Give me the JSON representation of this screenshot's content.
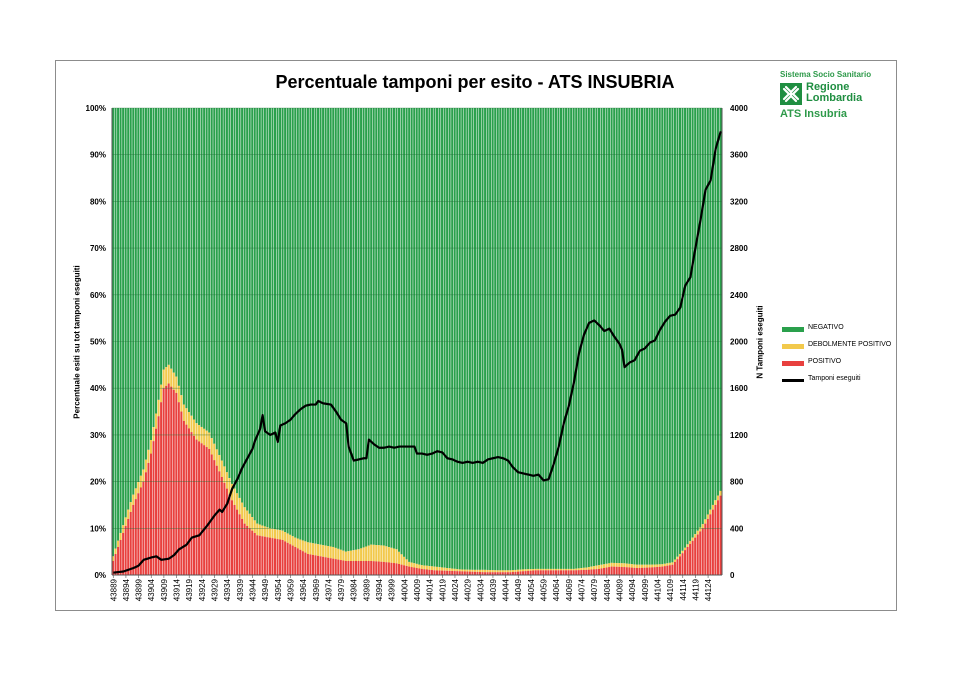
{
  "colors": {
    "negativo": "#2aa04c",
    "debolmente_positivo": "#f2c94c",
    "positivo": "#e8403e",
    "tamponi": "#000000",
    "grid": "#1f6e35"
  },
  "logo": {
    "top_text": "Sistema Socio Sanitario",
    "name": "Regione Lombardia",
    "bottom_text": "ATS Insubria",
    "icon": "regione-lombardia-logo-icon"
  },
  "chart_data": {
    "type": "bar",
    "title": "Percentuale tamponi per esito - ATS INSUBRIA",
    "ylabel": "Percentuale esiti su tot tamponi eseguiti",
    "y2label": "N Tamponi eseguiti",
    "ylim": [
      0,
      100
    ],
    "y2lim": [
      0,
      4000
    ],
    "yticks": [
      "0%",
      "10%",
      "20%",
      "30%",
      "40%",
      "50%",
      "60%",
      "70%",
      "80%",
      "90%",
      "100%"
    ],
    "y2ticks": [
      "0",
      "400",
      "800",
      "1200",
      "1600",
      "2000",
      "2400",
      "2800",
      "3200",
      "3600",
      "4000"
    ],
    "x_start": 43889,
    "x_end": 44129,
    "xticks": [
      "43889",
      "43894",
      "43899",
      "43904",
      "43909",
      "43914",
      "43919",
      "43924",
      "43929",
      "43934",
      "43939",
      "43944",
      "43949",
      "43954",
      "43959",
      "43964",
      "43969",
      "43974",
      "43979",
      "43984",
      "43989",
      "43994",
      "43999",
      "44004",
      "44009",
      "44014",
      "44019",
      "44024",
      "44029",
      "44034",
      "44039",
      "44044",
      "44049",
      "44054",
      "44059",
      "44064",
      "44069",
      "44074",
      "44079",
      "44084",
      "44089",
      "44094",
      "44099",
      "44104",
      "44109",
      "44114",
      "44119",
      "44124"
    ],
    "grid": true,
    "legend_position": "right",
    "legend": [
      "NEGATIVO",
      "DEBOLMENTE POSITIVO",
      "POSITIVO",
      "Tamponi eseguiti"
    ],
    "stacking": "percent",
    "positivo_pct_keypoints": [
      [
        43889,
        3
      ],
      [
        43893,
        9
      ],
      [
        43897,
        15
      ],
      [
        43901,
        20
      ],
      [
        43904,
        26
      ],
      [
        43907,
        34
      ],
      [
        43909,
        40
      ],
      [
        43911,
        41
      ],
      [
        43914,
        39
      ],
      [
        43917,
        33
      ],
      [
        43922,
        29
      ],
      [
        43927,
        27
      ],
      [
        43932,
        21
      ],
      [
        43936,
        16
      ],
      [
        43941,
        11
      ],
      [
        43946,
        8.5
      ],
      [
        43951,
        8
      ],
      [
        43956,
        7.5
      ],
      [
        43961,
        6
      ],
      [
        43966,
        4.5
      ],
      [
        43971,
        4
      ],
      [
        43976,
        3.5
      ],
      [
        43981,
        3
      ],
      [
        43986,
        3
      ],
      [
        43991,
        3
      ],
      [
        43996,
        2.8
      ],
      [
        44001,
        2.5
      ],
      [
        44006,
        1.8
      ],
      [
        44011,
        1.3
      ],
      [
        44016,
        1
      ],
      [
        44021,
        0.9
      ],
      [
        44026,
        0.8
      ],
      [
        44031,
        0.7
      ],
      [
        44036,
        0.6
      ],
      [
        44041,
        0.6
      ],
      [
        44046,
        0.6
      ],
      [
        44051,
        0.8
      ],
      [
        44056,
        1
      ],
      [
        44061,
        1
      ],
      [
        44066,
        1
      ],
      [
        44071,
        1
      ],
      [
        44076,
        1.1
      ],
      [
        44081,
        1.3
      ],
      [
        44086,
        1.8
      ],
      [
        44091,
        1.7
      ],
      [
        44096,
        1.5
      ],
      [
        44101,
        1.6
      ],
      [
        44106,
        1.8
      ],
      [
        44110,
        2.2
      ],
      [
        44113,
        4
      ],
      [
        44116,
        6
      ],
      [
        44119,
        8
      ],
      [
        44122,
        10
      ],
      [
        44125,
        13
      ],
      [
        44127,
        15
      ],
      [
        44129,
        17
      ]
    ],
    "debolmente_positivo_pct_keypoints": [
      [
        43889,
        1
      ],
      [
        43895,
        2
      ],
      [
        43900,
        2.5
      ],
      [
        43905,
        3
      ],
      [
        43909,
        4
      ],
      [
        43911,
        4
      ],
      [
        43914,
        3.5
      ],
      [
        43920,
        3.5
      ],
      [
        43925,
        3.5
      ],
      [
        43930,
        3.5
      ],
      [
        43935,
        3.5
      ],
      [
        43941,
        3.5
      ],
      [
        43946,
        2.5
      ],
      [
        43951,
        2
      ],
      [
        43956,
        2
      ],
      [
        43961,
        2
      ],
      [
        43966,
        2.5
      ],
      [
        43971,
        2.5
      ],
      [
        43976,
        2.5
      ],
      [
        43981,
        2
      ],
      [
        43986,
        2.5
      ],
      [
        43991,
        3.5
      ],
      [
        43996,
        3.5
      ],
      [
        44001,
        3
      ],
      [
        44006,
        1
      ],
      [
        44011,
        0.8
      ],
      [
        44016,
        0.8
      ],
      [
        44021,
        0.6
      ],
      [
        44026,
        0.4
      ],
      [
        44031,
        0.4
      ],
      [
        44036,
        0.5
      ],
      [
        44041,
        0.4
      ],
      [
        44046,
        0.4
      ],
      [
        44051,
        0.4
      ],
      [
        44056,
        0.3
      ],
      [
        44061,
        0.3
      ],
      [
        44066,
        0.3
      ],
      [
        44071,
        0.3
      ],
      [
        44076,
        0.5
      ],
      [
        44081,
        0.8
      ],
      [
        44086,
        0.8
      ],
      [
        44091,
        0.8
      ],
      [
        44096,
        0.7
      ],
      [
        44101,
        0.6
      ],
      [
        44106,
        0.5
      ],
      [
        44110,
        0.5
      ],
      [
        44115,
        0.5
      ],
      [
        44120,
        0.8
      ],
      [
        44125,
        1
      ],
      [
        44129,
        1
      ]
    ],
    "tamponi_eseguiti_keypoints": [
      [
        43889,
        20
      ],
      [
        43893,
        30
      ],
      [
        43897,
        60
      ],
      [
        43899,
        80
      ],
      [
        43901,
        130
      ],
      [
        43904,
        150
      ],
      [
        43906,
        160
      ],
      [
        43908,
        130
      ],
      [
        43911,
        140
      ],
      [
        43913,
        170
      ],
      [
        43915,
        220
      ],
      [
        43918,
        260
      ],
      [
        43920,
        320
      ],
      [
        43923,
        340
      ],
      [
        43926,
        420
      ],
      [
        43929,
        510
      ],
      [
        43931,
        560
      ],
      [
        43932,
        540
      ],
      [
        43934,
        610
      ],
      [
        43936,
        740
      ],
      [
        43938,
        820
      ],
      [
        43940,
        920
      ],
      [
        43942,
        1000
      ],
      [
        43944,
        1080
      ],
      [
        43945,
        1150
      ],
      [
        43947,
        1250
      ],
      [
        43948,
        1370
      ],
      [
        43949,
        1230
      ],
      [
        43951,
        1200
      ],
      [
        43953,
        1220
      ],
      [
        43954,
        1140
      ],
      [
        43955,
        1280
      ],
      [
        43957,
        1300
      ],
      [
        43959,
        1330
      ],
      [
        43961,
        1380
      ],
      [
        43963,
        1420
      ],
      [
        43965,
        1450
      ],
      [
        43967,
        1460
      ],
      [
        43969,
        1460
      ],
      [
        43970,
        1490
      ],
      [
        43972,
        1470
      ],
      [
        43975,
        1460
      ],
      [
        43977,
        1400
      ],
      [
        43979,
        1330
      ],
      [
        43981,
        1300
      ],
      [
        43982,
        1100
      ],
      [
        43984,
        980
      ],
      [
        43986,
        990
      ],
      [
        43988,
        1000
      ],
      [
        43989,
        1000
      ],
      [
        43990,
        1160
      ],
      [
        43992,
        1120
      ],
      [
        43994,
        1090
      ],
      [
        43996,
        1090
      ],
      [
        43998,
        1100
      ],
      [
        44000,
        1090
      ],
      [
        44002,
        1100
      ],
      [
        44004,
        1100
      ],
      [
        44006,
        1100
      ],
      [
        44008,
        1100
      ],
      [
        44009,
        1040
      ],
      [
        44011,
        1040
      ],
      [
        44013,
        1030
      ],
      [
        44015,
        1040
      ],
      [
        44017,
        1060
      ],
      [
        44019,
        1050
      ],
      [
        44021,
        1000
      ],
      [
        44023,
        990
      ],
      [
        44025,
        970
      ],
      [
        44027,
        960
      ],
      [
        44029,
        970
      ],
      [
        44031,
        960
      ],
      [
        44033,
        970
      ],
      [
        44035,
        960
      ],
      [
        44037,
        990
      ],
      [
        44039,
        1000
      ],
      [
        44041,
        1010
      ],
      [
        44043,
        1000
      ],
      [
        44045,
        980
      ],
      [
        44047,
        920
      ],
      [
        44049,
        880
      ],
      [
        44051,
        870
      ],
      [
        44053,
        860
      ],
      [
        44055,
        850
      ],
      [
        44057,
        860
      ],
      [
        44059,
        810
      ],
      [
        44061,
        820
      ],
      [
        44063,
        950
      ],
      [
        44065,
        1100
      ],
      [
        44067,
        1300
      ],
      [
        44069,
        1450
      ],
      [
        44071,
        1650
      ],
      [
        44073,
        1900
      ],
      [
        44075,
        2060
      ],
      [
        44077,
        2160
      ],
      [
        44079,
        2180
      ],
      [
        44081,
        2140
      ],
      [
        44083,
        2090
      ],
      [
        44085,
        2110
      ],
      [
        44087,
        2040
      ],
      [
        44089,
        1980
      ],
      [
        44090,
        1930
      ],
      [
        44091,
        1780
      ],
      [
        44093,
        1820
      ],
      [
        44095,
        1840
      ],
      [
        44097,
        1920
      ],
      [
        44099,
        1940
      ],
      [
        44101,
        1990
      ],
      [
        44103,
        2010
      ],
      [
        44105,
        2100
      ],
      [
        44107,
        2170
      ],
      [
        44109,
        2220
      ],
      [
        44111,
        2230
      ],
      [
        44113,
        2290
      ],
      [
        44115,
        2480
      ],
      [
        44117,
        2550
      ],
      [
        44119,
        2800
      ],
      [
        44121,
        3040
      ],
      [
        44123,
        3300
      ],
      [
        44125,
        3380
      ],
      [
        44127,
        3650
      ],
      [
        44129,
        3800
      ]
    ]
  }
}
